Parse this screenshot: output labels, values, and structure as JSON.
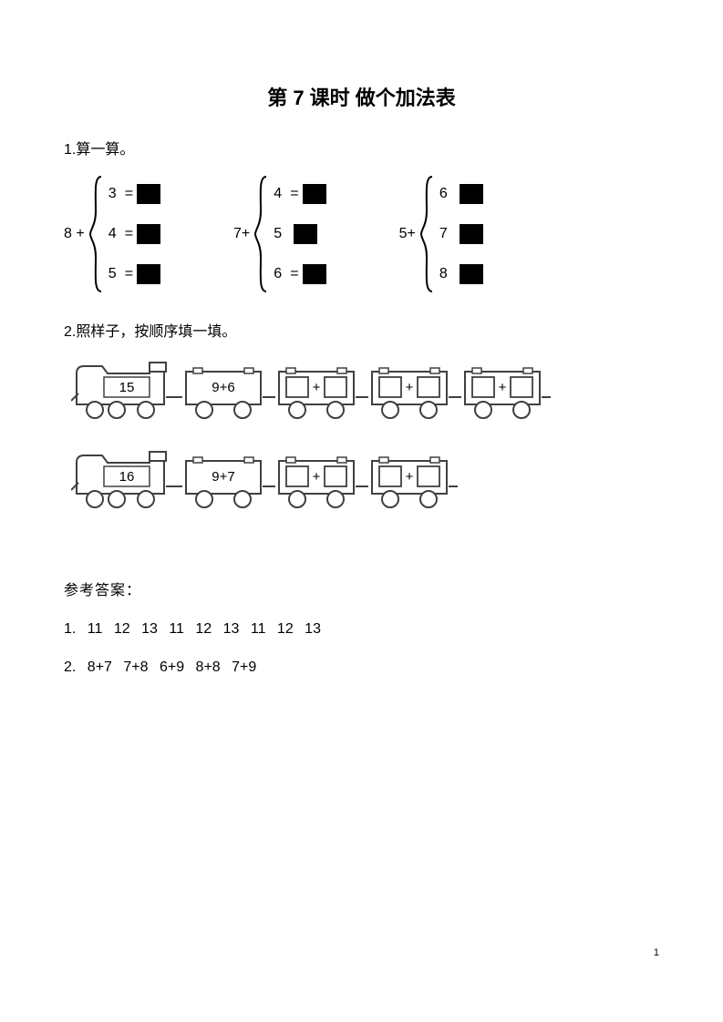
{
  "title": "第 7 课时  做个加法表",
  "q1": {
    "label": "1.算一算。",
    "groups": [
      {
        "prefix": "8 +",
        "rows": [
          {
            "n": "3",
            "eq": "="
          },
          {
            "n": "4",
            "eq": "="
          },
          {
            "n": "5",
            "eq": "="
          }
        ]
      },
      {
        "prefix": "7+",
        "rows": [
          {
            "n": "4",
            "eq": "="
          },
          {
            "n": "5",
            "eq": ""
          },
          {
            "n": "6",
            "eq": "="
          }
        ]
      },
      {
        "prefix": "5+",
        "rows": [
          {
            "n": "6",
            "eq": ""
          },
          {
            "n": "7",
            "eq": ""
          },
          {
            "n": "8",
            "eq": ""
          }
        ]
      }
    ],
    "blackbox_color": "#000000"
  },
  "q2": {
    "label": "2.照样子，按顺序填一填。",
    "trains": [
      {
        "engine_value": "15",
        "cars": [
          {
            "filled": true,
            "a": "9",
            "b": "6"
          },
          {
            "filled": false
          },
          {
            "filled": false
          },
          {
            "filled": false
          }
        ]
      },
      {
        "engine_value": "16",
        "cars": [
          {
            "filled": true,
            "a": "9",
            "b": "7"
          },
          {
            "filled": false
          },
          {
            "filled": false
          }
        ]
      }
    ]
  },
  "answers": {
    "heading": "参考答案：",
    "lines": [
      "1.  11  12  13  11  12  13  11  12  13",
      "2.  8+7  7+8  6+9  8+8  7+9"
    ]
  },
  "page_number": "1",
  "style": {
    "page_bg": "#ffffff",
    "text_color": "#000000",
    "train_stroke": "#404040",
    "train_fill": "#ffffff",
    "blank_box_fill": "#ffffff",
    "font_title_pt": 22,
    "font_body_pt": 16
  }
}
